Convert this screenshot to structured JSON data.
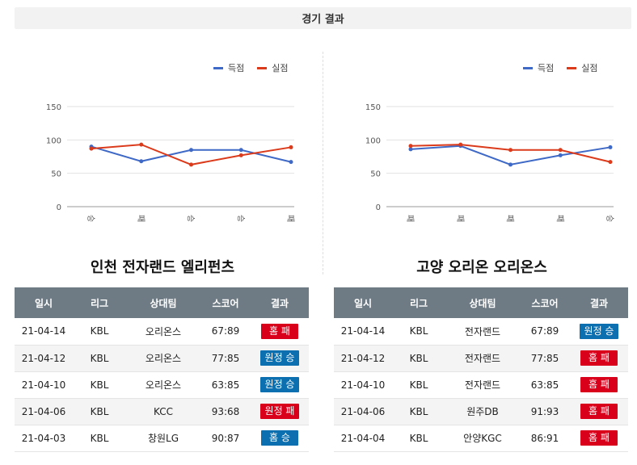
{
  "header": {
    "title": "경기 결과"
  },
  "legend": {
    "scored": "득점",
    "conceded": "실점"
  },
  "colors": {
    "scored": "#3f69c6",
    "conceded": "#db3a1b",
    "home": "#d9001b",
    "away": "#0b6fb0"
  },
  "table_headers": [
    "일시",
    "리그",
    "상대팀",
    "스코어",
    "결과"
  ],
  "teams": [
    {
      "name": "인천 전자랜드 엘리펀츠",
      "chart_data": {
        "type": "line",
        "categories": [
          "승",
          "패",
          "승",
          "승",
          "패"
        ],
        "yticks": [
          "0",
          "50",
          "100",
          "150"
        ],
        "ylim": [
          0,
          150
        ],
        "series": [
          {
            "name": "득점",
            "values": [
              90,
              68,
              85,
              85,
              67
            ]
          },
          {
            "name": "실점",
            "values": [
              87,
              93,
              63,
              77,
              89
            ]
          }
        ]
      },
      "games": [
        {
          "date": "21-04-14",
          "league": "KBL",
          "opponent": "오리온스",
          "score": "67:89",
          "result": "홈 패",
          "kind": "home"
        },
        {
          "date": "21-04-12",
          "league": "KBL",
          "opponent": "오리온스",
          "score": "77:85",
          "result": "원정 승",
          "kind": "away"
        },
        {
          "date": "21-04-10",
          "league": "KBL",
          "opponent": "오리온스",
          "score": "63:85",
          "result": "원정 승",
          "kind": "away"
        },
        {
          "date": "21-04-06",
          "league": "KBL",
          "opponent": "KCC",
          "score": "93:68",
          "result": "원정 패",
          "kind": "home"
        },
        {
          "date": "21-04-03",
          "league": "KBL",
          "opponent": "창원LG",
          "score": "90:87",
          "result": "홈 승",
          "kind": "away"
        }
      ]
    },
    {
      "name": "고양 오리온 오리온스",
      "chart_data": {
        "type": "line",
        "categories": [
          "패",
          "패",
          "패",
          "패",
          "승"
        ],
        "yticks": [
          "0",
          "50",
          "100",
          "150"
        ],
        "ylim": [
          0,
          150
        ],
        "series": [
          {
            "name": "득점",
            "values": [
              86,
              91,
              63,
              77,
              89
            ]
          },
          {
            "name": "실점",
            "values": [
              91,
              93,
              85,
              85,
              67
            ]
          }
        ]
      },
      "games": [
        {
          "date": "21-04-14",
          "league": "KBL",
          "opponent": "전자랜드",
          "score": "67:89",
          "result": "원정 승",
          "kind": "away"
        },
        {
          "date": "21-04-12",
          "league": "KBL",
          "opponent": "전자랜드",
          "score": "77:85",
          "result": "홈 패",
          "kind": "home"
        },
        {
          "date": "21-04-10",
          "league": "KBL",
          "opponent": "전자랜드",
          "score": "63:85",
          "result": "홈 패",
          "kind": "home"
        },
        {
          "date": "21-04-06",
          "league": "KBL",
          "opponent": "원주DB",
          "score": "91:93",
          "result": "홈 패",
          "kind": "home"
        },
        {
          "date": "21-04-04",
          "league": "KBL",
          "opponent": "안양KGC",
          "score": "86:91",
          "result": "홈 패",
          "kind": "home"
        }
      ]
    }
  ]
}
